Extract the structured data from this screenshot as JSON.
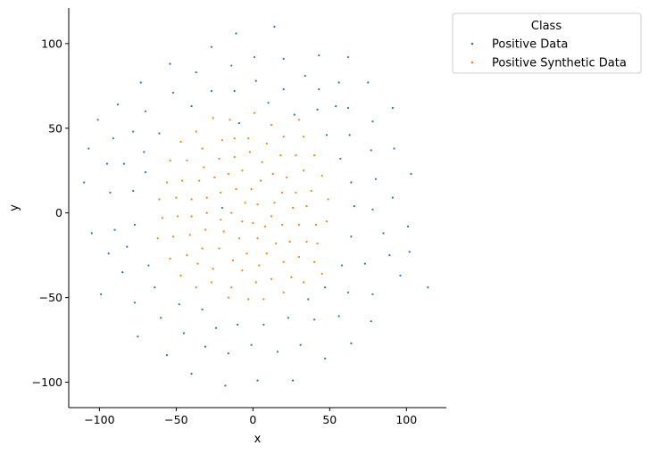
{
  "chart_data": {
    "type": "scatter",
    "title": "",
    "xlabel": "x",
    "ylabel": "y",
    "xlim": [
      -120,
      126
    ],
    "ylim": [
      -115,
      121
    ],
    "xticks": [
      -100,
      -50,
      0,
      50,
      100
    ],
    "yticks": [
      -100,
      -50,
      0,
      50,
      100
    ],
    "xtick_labels": [
      "−100",
      "−50",
      "0",
      "50",
      "100"
    ],
    "ytick_labels": [
      "−100",
      "−50",
      "0",
      "50",
      "100"
    ],
    "grid": false,
    "legend": {
      "title": "Class",
      "placement": "outside-upper-right",
      "entries": [
        "Positive Data",
        "Positive Synthetic Data"
      ]
    },
    "series": [
      {
        "name": "Positive Data",
        "color": "#1f77b4",
        "points": [
          [
            -110,
            18
          ],
          [
            -107,
            38
          ],
          [
            -105,
            -12
          ],
          [
            -101,
            55
          ],
          [
            -99,
            -48
          ],
          [
            -95,
            29
          ],
          [
            -94,
            -24
          ],
          [
            -93,
            12
          ],
          [
            -91,
            44
          ],
          [
            -90,
            -10
          ],
          [
            -88,
            64
          ],
          [
            -85,
            -35
          ],
          [
            -84,
            29
          ],
          [
            -82,
            -20
          ],
          [
            -78,
            13
          ],
          [
            -78,
            48
          ],
          [
            -77,
            -7
          ],
          [
            -77,
            -53
          ],
          [
            -75,
            -73
          ],
          [
            -73,
            77
          ],
          [
            -71,
            36
          ],
          [
            -70,
            24
          ],
          [
            -70,
            60
          ],
          [
            -68,
            -31
          ],
          [
            -64,
            -44
          ],
          [
            -61,
            47
          ],
          [
            -60,
            -62
          ],
          [
            -56,
            -84
          ],
          [
            -54,
            88
          ],
          [
            -52,
            71
          ],
          [
            -48,
            -54
          ],
          [
            -45,
            -71
          ],
          [
            -40,
            63
          ],
          [
            -40,
            -95
          ],
          [
            -37,
            83
          ],
          [
            -33,
            -57
          ],
          [
            -31,
            -79
          ],
          [
            -27,
            98
          ],
          [
            -27,
            72
          ],
          [
            -24,
            -68
          ],
          [
            -20,
            3
          ],
          [
            -18,
            -102
          ],
          [
            -16,
            -83
          ],
          [
            -14,
            87
          ],
          [
            -12,
            72
          ],
          [
            -11,
            106
          ],
          [
            -10,
            -66
          ],
          [
            -9,
            53
          ],
          [
            -1,
            -78
          ],
          [
            1,
            92
          ],
          [
            2,
            78
          ],
          [
            3,
            -99
          ],
          [
            7,
            -66
          ],
          [
            10,
            65
          ],
          [
            14,
            110
          ],
          [
            16,
            -82
          ],
          [
            20,
            91
          ],
          [
            20,
            73
          ],
          [
            23,
            -62
          ],
          [
            26,
            -99
          ],
          [
            27,
            58
          ],
          [
            31,
            -78
          ],
          [
            34,
            81
          ],
          [
            36,
            -51
          ],
          [
            40,
            -63
          ],
          [
            43,
            93
          ],
          [
            43,
            73
          ],
          [
            42,
            61
          ],
          [
            48,
            46
          ],
          [
            47,
            -44
          ],
          [
            47,
            -86
          ],
          [
            54,
            63
          ],
          [
            56,
            -61
          ],
          [
            56,
            77
          ],
          [
            57,
            32
          ],
          [
            58,
            -31
          ],
          [
            62,
            62
          ],
          [
            62,
            -47
          ],
          [
            62,
            92
          ],
          [
            63,
            46
          ],
          [
            64,
            18
          ],
          [
            64,
            -77
          ],
          [
            64,
            -14
          ],
          [
            66,
            4
          ],
          [
            73,
            -30
          ],
          [
            75,
            77
          ],
          [
            77,
            37
          ],
          [
            77,
            -64
          ],
          [
            78,
            -48
          ],
          [
            78,
            54
          ],
          [
            78,
            2
          ],
          [
            80,
            20
          ],
          [
            85,
            -12
          ],
          [
            89,
            -25
          ],
          [
            91,
            9
          ],
          [
            91,
            62
          ],
          [
            92,
            38
          ],
          [
            96,
            -37
          ],
          [
            101,
            -8
          ],
          [
            102,
            -23
          ],
          [
            103,
            23
          ],
          [
            114,
            -44
          ]
        ]
      },
      {
        "name": "Positive Synthetic Data",
        "color": "#ff7f0e",
        "points": [
          [
            -62,
            -15
          ],
          [
            -61,
            8
          ],
          [
            -59,
            -3
          ],
          [
            -56,
            18
          ],
          [
            -54,
            31
          ],
          [
            -54,
            -27
          ],
          [
            -52,
            -14
          ],
          [
            -50,
            9
          ],
          [
            -49,
            -2
          ],
          [
            -47,
            42
          ],
          [
            -47,
            -37
          ],
          [
            -46,
            19
          ],
          [
            -43,
            31
          ],
          [
            -43,
            -25
          ],
          [
            -41,
            -13
          ],
          [
            -40,
            8
          ],
          [
            -40,
            -2
          ],
          [
            -37,
            -44
          ],
          [
            -37,
            48
          ],
          [
            -36,
            -30
          ],
          [
            -35,
            19
          ],
          [
            -33,
            -21
          ],
          [
            -33,
            38
          ],
          [
            -32,
            27
          ],
          [
            -31,
            -10
          ],
          [
            -30,
            9
          ],
          [
            -30,
            0
          ],
          [
            -27,
            -41
          ],
          [
            -26,
            56
          ],
          [
            -26,
            -33
          ],
          [
            -25,
            21
          ],
          [
            -22,
            -21
          ],
          [
            -22,
            32
          ],
          [
            -21,
            -4
          ],
          [
            -21,
            12
          ],
          [
            -20,
            43
          ],
          [
            -19,
            -11
          ],
          [
            -16,
            -50
          ],
          [
            -16,
            23
          ],
          [
            -15,
            55
          ],
          [
            -14,
            -44
          ],
          [
            -14,
            0
          ],
          [
            -13,
            -28
          ],
          [
            -12,
            33
          ],
          [
            -12,
            44
          ],
          [
            -11,
            14
          ],
          [
            -9,
            -15
          ],
          [
            -7,
            -34
          ],
          [
            -7,
            -5
          ],
          [
            -7,
            25
          ],
          [
            -5,
            6
          ],
          [
            -4,
            -24
          ],
          [
            -3,
            44
          ],
          [
            -3,
            -51
          ],
          [
            -2,
            36
          ],
          [
            -1,
            14
          ],
          [
            0,
            -6
          ],
          [
            1,
            59
          ],
          [
            2,
            -41
          ],
          [
            3,
            -15
          ],
          [
            3,
            5
          ],
          [
            4,
            -31
          ],
          [
            5,
            19
          ],
          [
            6,
            30
          ],
          [
            7,
            -51
          ],
          [
            8,
            -8
          ],
          [
            9,
            -24
          ],
          [
            9,
            41
          ],
          [
            12,
            -2
          ],
          [
            12,
            52
          ],
          [
            12,
            -39
          ],
          [
            13,
            23
          ],
          [
            14,
            6
          ],
          [
            15,
            -18
          ],
          [
            18,
            34
          ],
          [
            19,
            -7
          ],
          [
            19,
            12
          ],
          [
            20,
            -29
          ],
          [
            20,
            -47
          ],
          [
            20,
            45
          ],
          [
            22,
            21
          ],
          [
            24,
            -17
          ],
          [
            25,
            -38
          ],
          [
            26,
            3
          ],
          [
            28,
            12
          ],
          [
            28,
            34
          ],
          [
            30,
            -7
          ],
          [
            30,
            -26
          ],
          [
            30,
            55
          ],
          [
            33,
            45
          ],
          [
            33,
            25
          ],
          [
            33,
            -41
          ],
          [
            35,
            -17
          ],
          [
            35,
            4
          ],
          [
            38,
            13
          ],
          [
            40,
            -29
          ],
          [
            40,
            34
          ],
          [
            41,
            -7
          ],
          [
            42,
            -18
          ],
          [
            45,
            -36
          ],
          [
            45,
            22
          ],
          [
            48,
            -5
          ],
          [
            49,
            8
          ]
        ]
      }
    ]
  }
}
